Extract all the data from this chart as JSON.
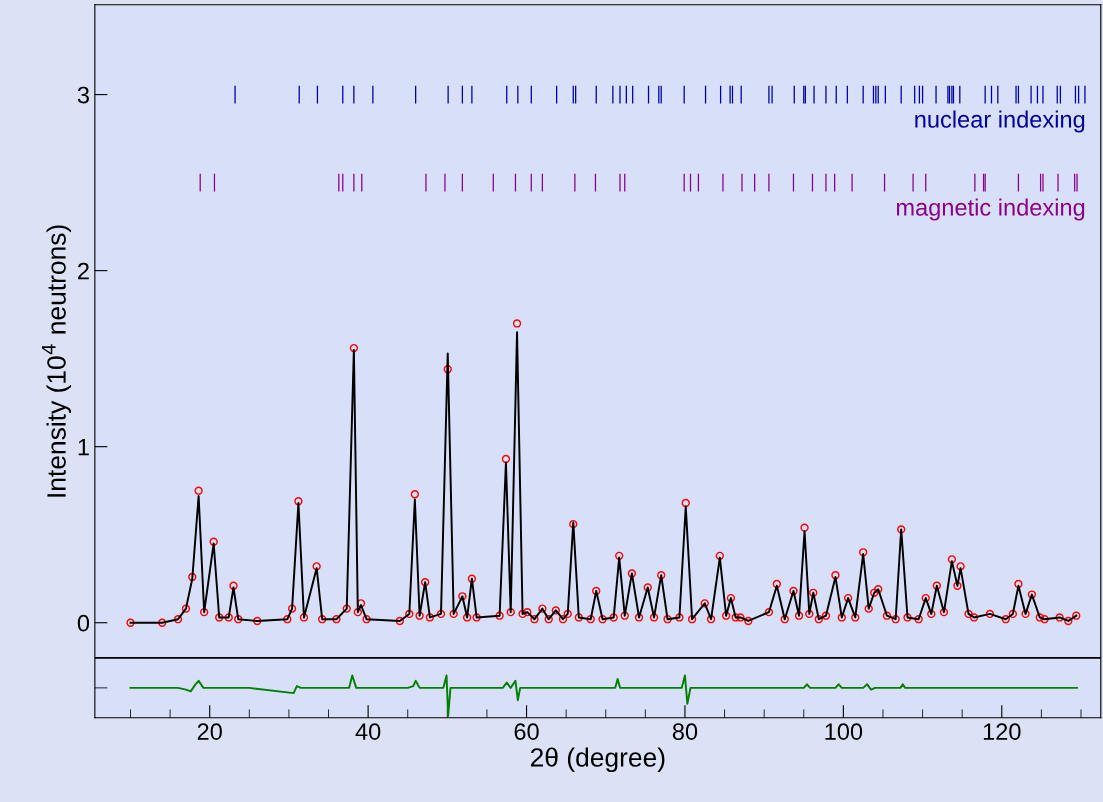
{
  "chart_data": {
    "type": "line",
    "xlabel": "2θ (degree)",
    "ylabel": "Intensity (10$^{4}$ neutrons)",
    "xlim": [
      5.5,
      132.5
    ],
    "ylim": [
      -0.54,
      3.51
    ],
    "xticks": [
      {
        "value": 10,
        "label": null
      },
      {
        "value": 15,
        "label": null
      },
      20,
      {
        "value": 25,
        "label": null
      },
      {
        "value": 30,
        "label": null
      },
      {
        "value": 35,
        "label": null
      },
      40,
      {
        "value": 45,
        "label": null
      },
      {
        "value": 50,
        "label": null
      },
      {
        "value": 55,
        "label": null
      },
      60,
      {
        "value": 65,
        "label": null
      },
      {
        "value": 70,
        "label": null
      },
      {
        "value": 75,
        "label": null
      },
      80,
      {
        "value": 85,
        "label": null
      },
      {
        "value": 90,
        "label": null
      },
      {
        "value": 95,
        "label": null
      },
      100,
      {
        "value": 105,
        "label": null
      },
      {
        "value": 110,
        "label": null
      },
      {
        "value": 115,
        "label": null
      },
      120,
      {
        "value": 125,
        "label": null
      },
      {
        "value": 130,
        "label": null
      }
    ],
    "yticks": [
      {
        "value": -0.37,
        "label": null
      },
      0,
      1,
      2,
      3
    ],
    "grid": false,
    "legend": "top right",
    "ref_lines": [
      {
        "axis": "y",
        "value": -0.2,
        "color": "#000000"
      }
    ],
    "series": [
      {
        "type": "scatter",
        "marker": "circle",
        "color": "#ff0000",
        "x": [
          10,
          14,
          16,
          17,
          17.8,
          18.6,
          19.3,
          20.5,
          21.2,
          22.4,
          23.0,
          23.6,
          26,
          29.8,
          30.4,
          31.2,
          31.9,
          33.5,
          34.2,
          36,
          37.3,
          38.2,
          38.7,
          39.1,
          39.8,
          44,
          45.2,
          45.9,
          46.5,
          47.2,
          47.8,
          49.2,
          50.05,
          50.8,
          51.9,
          52.5,
          53.1,
          53.7,
          56.6,
          57.4,
          58.0,
          58.8,
          59.5,
          60.1,
          61.0,
          62.0,
          62.8,
          63.7,
          64.6,
          65.2,
          65.9,
          66.6,
          68.1,
          68.8,
          69.6,
          71.0,
          71.7,
          72.4,
          73.3,
          74.2,
          75.3,
          76.1,
          77.0,
          77.8,
          79.3,
          80.1,
          80.9,
          82.5,
          83.3,
          84.4,
          85.2,
          85.8,
          86.4,
          87.0,
          88.0,
          90.6,
          91.6,
          92.6,
          93.7,
          94.4,
          95.1,
          95.7,
          96.2,
          96.9,
          97.8,
          99.0,
          99.8,
          100.6,
          101.5,
          102.5,
          103.2,
          103.9,
          104.4,
          105.5,
          106.6,
          107.3,
          108.1,
          109.5,
          110.4,
          111.1,
          111.8,
          112.7,
          113.7,
          114.4,
          114.8,
          115.8,
          116.5,
          118.5,
          120.5,
          121.4,
          122.1,
          123.0,
          123.8,
          124.8,
          125.4,
          127.3,
          128.4,
          129.4
        ],
        "values": [
          0,
          0,
          0.02,
          0.08,
          0.26,
          0.75,
          0.06,
          0.46,
          0.03,
          0.03,
          0.21,
          0.02,
          0.01,
          0.02,
          0.08,
          0.69,
          0.03,
          0.32,
          0.02,
          0.02,
          0.08,
          1.56,
          0.06,
          0.11,
          0.02,
          0.01,
          0.05,
          0.73,
          0.04,
          0.23,
          0.03,
          0.05,
          1.44,
          0.05,
          0.15,
          0.03,
          0.25,
          0.03,
          0.04,
          0.93,
          0.06,
          1.7,
          0.05,
          0.06,
          0.02,
          0.08,
          0.02,
          0.07,
          0.02,
          0.05,
          0.56,
          0.03,
          0.02,
          0.18,
          0.02,
          0.03,
          0.38,
          0.04,
          0.28,
          0.03,
          0.2,
          0.03,
          0.27,
          0.02,
          0.03,
          0.68,
          0.02,
          0.11,
          0.02,
          0.38,
          0.04,
          0.14,
          0.03,
          0.03,
          0.01,
          0.06,
          0.22,
          0.02,
          0.18,
          0.04,
          0.54,
          0.05,
          0.17,
          0.02,
          0.04,
          0.27,
          0.03,
          0.14,
          0.03,
          0.4,
          0.08,
          0.17,
          0.19,
          0.04,
          0.02,
          0.53,
          0.03,
          0.02,
          0.14,
          0.05,
          0.21,
          0.06,
          0.36,
          0.21,
          0.32,
          0.05,
          0.03,
          0.05,
          0.02,
          0.05,
          0.22,
          0.05,
          0.16,
          0.03,
          0.02,
          0.03,
          0.01,
          0.04
        ]
      },
      {
        "marker": "none",
        "color": "#000000",
        "x": [
          10,
          14,
          16,
          17,
          17.8,
          18.6,
          19.3,
          20.5,
          21.2,
          22.4,
          23.0,
          23.6,
          26,
          29.8,
          30.4,
          31.2,
          31.9,
          33.5,
          34.2,
          36,
          37.3,
          38.2,
          38.7,
          39.1,
          39.8,
          44,
          45.2,
          45.9,
          46.5,
          47.2,
          47.8,
          49.2,
          50.05,
          50.8,
          51.9,
          52.5,
          53.1,
          53.7,
          56.6,
          57.4,
          58.0,
          58.8,
          59.5,
          60.1,
          61.0,
          62.0,
          62.8,
          63.7,
          64.6,
          65.2,
          65.9,
          66.6,
          68.1,
          68.8,
          69.6,
          71.0,
          71.7,
          72.4,
          73.3,
          74.2,
          75.3,
          76.1,
          77.0,
          77.8,
          79.3,
          80.1,
          80.9,
          82.5,
          83.3,
          84.4,
          85.2,
          85.8,
          86.4,
          87.0,
          88.0,
          90.6,
          91.6,
          92.6,
          93.7,
          94.4,
          95.1,
          95.7,
          96.2,
          96.9,
          97.8,
          99.0,
          99.8,
          100.6,
          101.5,
          102.5,
          103.2,
          103.9,
          104.4,
          105.5,
          106.6,
          107.3,
          108.1,
          109.5,
          110.4,
          111.1,
          111.8,
          112.7,
          113.7,
          114.4,
          114.8,
          115.8,
          116.5,
          118.5,
          120.5,
          121.4,
          122.1,
          123.0,
          123.8,
          124.8,
          125.4,
          127.3,
          128.4,
          129.4
        ],
        "values": [
          0,
          0,
          0.02,
          0.08,
          0.25,
          0.72,
          0.06,
          0.45,
          0.03,
          0.03,
          0.2,
          0.02,
          0.01,
          0.02,
          0.08,
          0.68,
          0.03,
          0.31,
          0.02,
          0.02,
          0.08,
          1.55,
          0.06,
          0.1,
          0.02,
          0.01,
          0.05,
          0.7,
          0.04,
          0.23,
          0.03,
          0.05,
          1.53,
          0.05,
          0.15,
          0.03,
          0.25,
          0.03,
          0.04,
          0.91,
          0.06,
          1.65,
          0.05,
          0.06,
          0.02,
          0.08,
          0.02,
          0.07,
          0.02,
          0.05,
          0.57,
          0.03,
          0.02,
          0.18,
          0.02,
          0.03,
          0.37,
          0.04,
          0.28,
          0.03,
          0.2,
          0.03,
          0.27,
          0.02,
          0.03,
          0.66,
          0.02,
          0.11,
          0.02,
          0.37,
          0.04,
          0.14,
          0.03,
          0.03,
          0.01,
          0.06,
          0.21,
          0.02,
          0.18,
          0.04,
          0.52,
          0.05,
          0.17,
          0.02,
          0.04,
          0.26,
          0.03,
          0.14,
          0.03,
          0.39,
          0.08,
          0.17,
          0.19,
          0.04,
          0.02,
          0.53,
          0.03,
          0.02,
          0.14,
          0.05,
          0.21,
          0.06,
          0.35,
          0.21,
          0.31,
          0.05,
          0.03,
          0.05,
          0.02,
          0.05,
          0.21,
          0.05,
          0.16,
          0.03,
          0.02,
          0.03,
          0.01,
          0.04
        ]
      },
      {
        "marker": "none",
        "color": "#008000",
        "x": [
          10,
          16,
          17,
          17.6,
          18.2,
          18.6,
          19.2,
          25,
          30.6,
          31.0,
          31.5,
          36,
          37.6,
          38.0,
          38.5,
          45,
          45.7,
          46.0,
          46.5,
          49.5,
          49.9,
          50.1,
          50.4,
          57.0,
          57.5,
          58.0,
          58.6,
          58.9,
          59.2,
          66,
          71.2,
          71.5,
          71.8,
          72.2,
          79.6,
          80.0,
          80.3,
          80.7,
          85,
          95,
          95.4,
          95.8,
          99,
          99.4,
          99.8,
          102.5,
          103,
          103.5,
          104,
          104.5,
          107.2,
          107.5,
          107.8,
          115,
          129.5
        ],
        "values": [
          -0.37,
          -0.37,
          -0.38,
          -0.39,
          -0.35,
          -0.33,
          -0.37,
          -0.37,
          -0.4,
          -0.36,
          -0.37,
          -0.37,
          -0.37,
          -0.3,
          -0.37,
          -0.37,
          -0.36,
          -0.33,
          -0.37,
          -0.37,
          -0.3,
          -0.53,
          -0.37,
          -0.37,
          -0.34,
          -0.37,
          -0.33,
          -0.44,
          -0.37,
          -0.37,
          -0.37,
          -0.32,
          -0.37,
          -0.37,
          -0.37,
          -0.3,
          -0.46,
          -0.37,
          -0.37,
          -0.37,
          -0.35,
          -0.37,
          -0.37,
          -0.35,
          -0.37,
          -0.37,
          -0.35,
          -0.38,
          -0.37,
          -0.37,
          -0.37,
          -0.35,
          -0.37,
          -0.37,
          -0.37
        ]
      },
      {
        "type": "bar",
        "name": "nuclear indexing",
        "base": [
          2.95,
          2.95,
          2.95,
          2.95,
          2.95,
          2.95,
          2.95,
          2.95,
          2.95,
          2.95,
          2.95,
          2.95,
          2.95,
          2.95,
          2.95,
          2.95,
          2.95,
          2.95,
          2.95,
          2.95,
          2.95,
          2.95,
          2.95,
          2.95,
          2.95,
          2.95,
          2.95,
          2.95,
          2.95,
          2.95,
          2.95,
          2.95,
          2.95,
          2.95,
          2.95,
          2.95,
          2.95,
          2.95,
          2.95,
          2.95,
          2.95,
          2.95,
          2.95,
          2.95,
          2.95,
          2.95,
          2.95,
          2.95,
          2.95,
          2.95,
          2.95,
          2.95,
          2.95,
          2.95,
          2.95,
          2.95,
          2.95,
          2.95,
          2.95,
          2.95,
          2.95,
          2.95,
          2.95,
          2.95,
          2.95,
          2.95,
          2.95
        ],
        "color": "#0000a0",
        "x": [
          23.2,
          31.3,
          33.6,
          36.8,
          38.2,
          40.6,
          46.0,
          50.1,
          51.9,
          53.1,
          57.5,
          58.9,
          60.6,
          63.8,
          65.9,
          66.2,
          68.8,
          70.9,
          71.8,
          72.6,
          73.4,
          75.4,
          76.7,
          77.0,
          79.9,
          82.6,
          84.5,
          85.7,
          86.0,
          87.1,
          90.6,
          91.0,
          93.8,
          95.0,
          95.2,
          96.3,
          97.8,
          99.1,
          100.5,
          102.5,
          103.8,
          104.1,
          104.4,
          105.3,
          107.3,
          109.0,
          109.6,
          110.0,
          111.7,
          113.2,
          113.4,
          113.7,
          113.9,
          114.7,
          117.9,
          118.7,
          119.5,
          121.8,
          122.1,
          123.7,
          124.5,
          125.2,
          127.0,
          127.4,
          129.3,
          129.7,
          130.5
        ],
        "values": [
          0.1,
          0.1,
          0.1,
          0.1,
          0.1,
          0.1,
          0.1,
          0.1,
          0.1,
          0.1,
          0.1,
          0.1,
          0.1,
          0.1,
          0.1,
          0.1,
          0.1,
          0.1,
          0.1,
          0.1,
          0.1,
          0.1,
          0.1,
          0.1,
          0.1,
          0.1,
          0.1,
          0.1,
          0.1,
          0.1,
          0.1,
          0.1,
          0.1,
          0.1,
          0.1,
          0.1,
          0.1,
          0.1,
          0.1,
          0.1,
          0.1,
          0.1,
          0.1,
          0.1,
          0.1,
          0.1,
          0.1,
          0.1,
          0.1,
          0.1,
          0.1,
          0.1,
          0.1,
          0.1,
          0.1,
          0.1,
          0.1,
          0.1,
          0.1,
          0.1,
          0.1,
          0.1,
          0.1,
          0.1,
          0.1,
          0.1,
          0.1
        ]
      },
      {
        "type": "bar",
        "name": "magnetic indexing",
        "base": [
          2.45,
          2.45,
          2.45,
          2.45,
          2.45,
          2.45,
          2.45,
          2.45,
          2.45,
          2.45,
          2.45,
          2.45,
          2.45,
          2.45,
          2.45,
          2.45,
          2.45,
          2.45,
          2.45,
          2.45,
          2.45,
          2.45,
          2.45,
          2.45,
          2.45,
          2.45,
          2.45,
          2.45,
          2.45,
          2.45,
          2.45,
          2.45,
          2.45,
          2.45,
          2.45,
          2.45,
          2.45,
          2.45,
          2.45,
          2.45,
          2.45
        ],
        "color": "#8b008b",
        "x": [
          18.8,
          20.6,
          36.3,
          36.8,
          38.2,
          39.2,
          47.3,
          49.7,
          51.9,
          55.8,
          58.6,
          60.6,
          62.0,
          66.1,
          68.7,
          71.8,
          72.4,
          79.9,
          80.7,
          81.7,
          84.8,
          87.2,
          88.8,
          90.6,
          93.7,
          96.1,
          97.8,
          98.9,
          101.1,
          105.2,
          108.8,
          110.4,
          116.6,
          117.7,
          117.9,
          122.1,
          124.9,
          125.2,
          127.1,
          129.2,
          129.5
        ],
        "values": [
          0.1,
          0.1,
          0.1,
          0.1,
          0.1,
          0.1,
          0.1,
          0.1,
          0.1,
          0.1,
          0.1,
          0.1,
          0.1,
          0.1,
          0.1,
          0.1,
          0.1,
          0.1,
          0.1,
          0.1,
          0.1,
          0.1,
          0.1,
          0.1,
          0.1,
          0.1,
          0.1,
          0.1,
          0.1,
          0.1,
          0.1,
          0.1,
          0.1,
          0.1,
          0.1,
          0.1,
          0.1,
          0.1,
          0.1,
          0.1,
          0.1
        ]
      }
    ]
  }
}
